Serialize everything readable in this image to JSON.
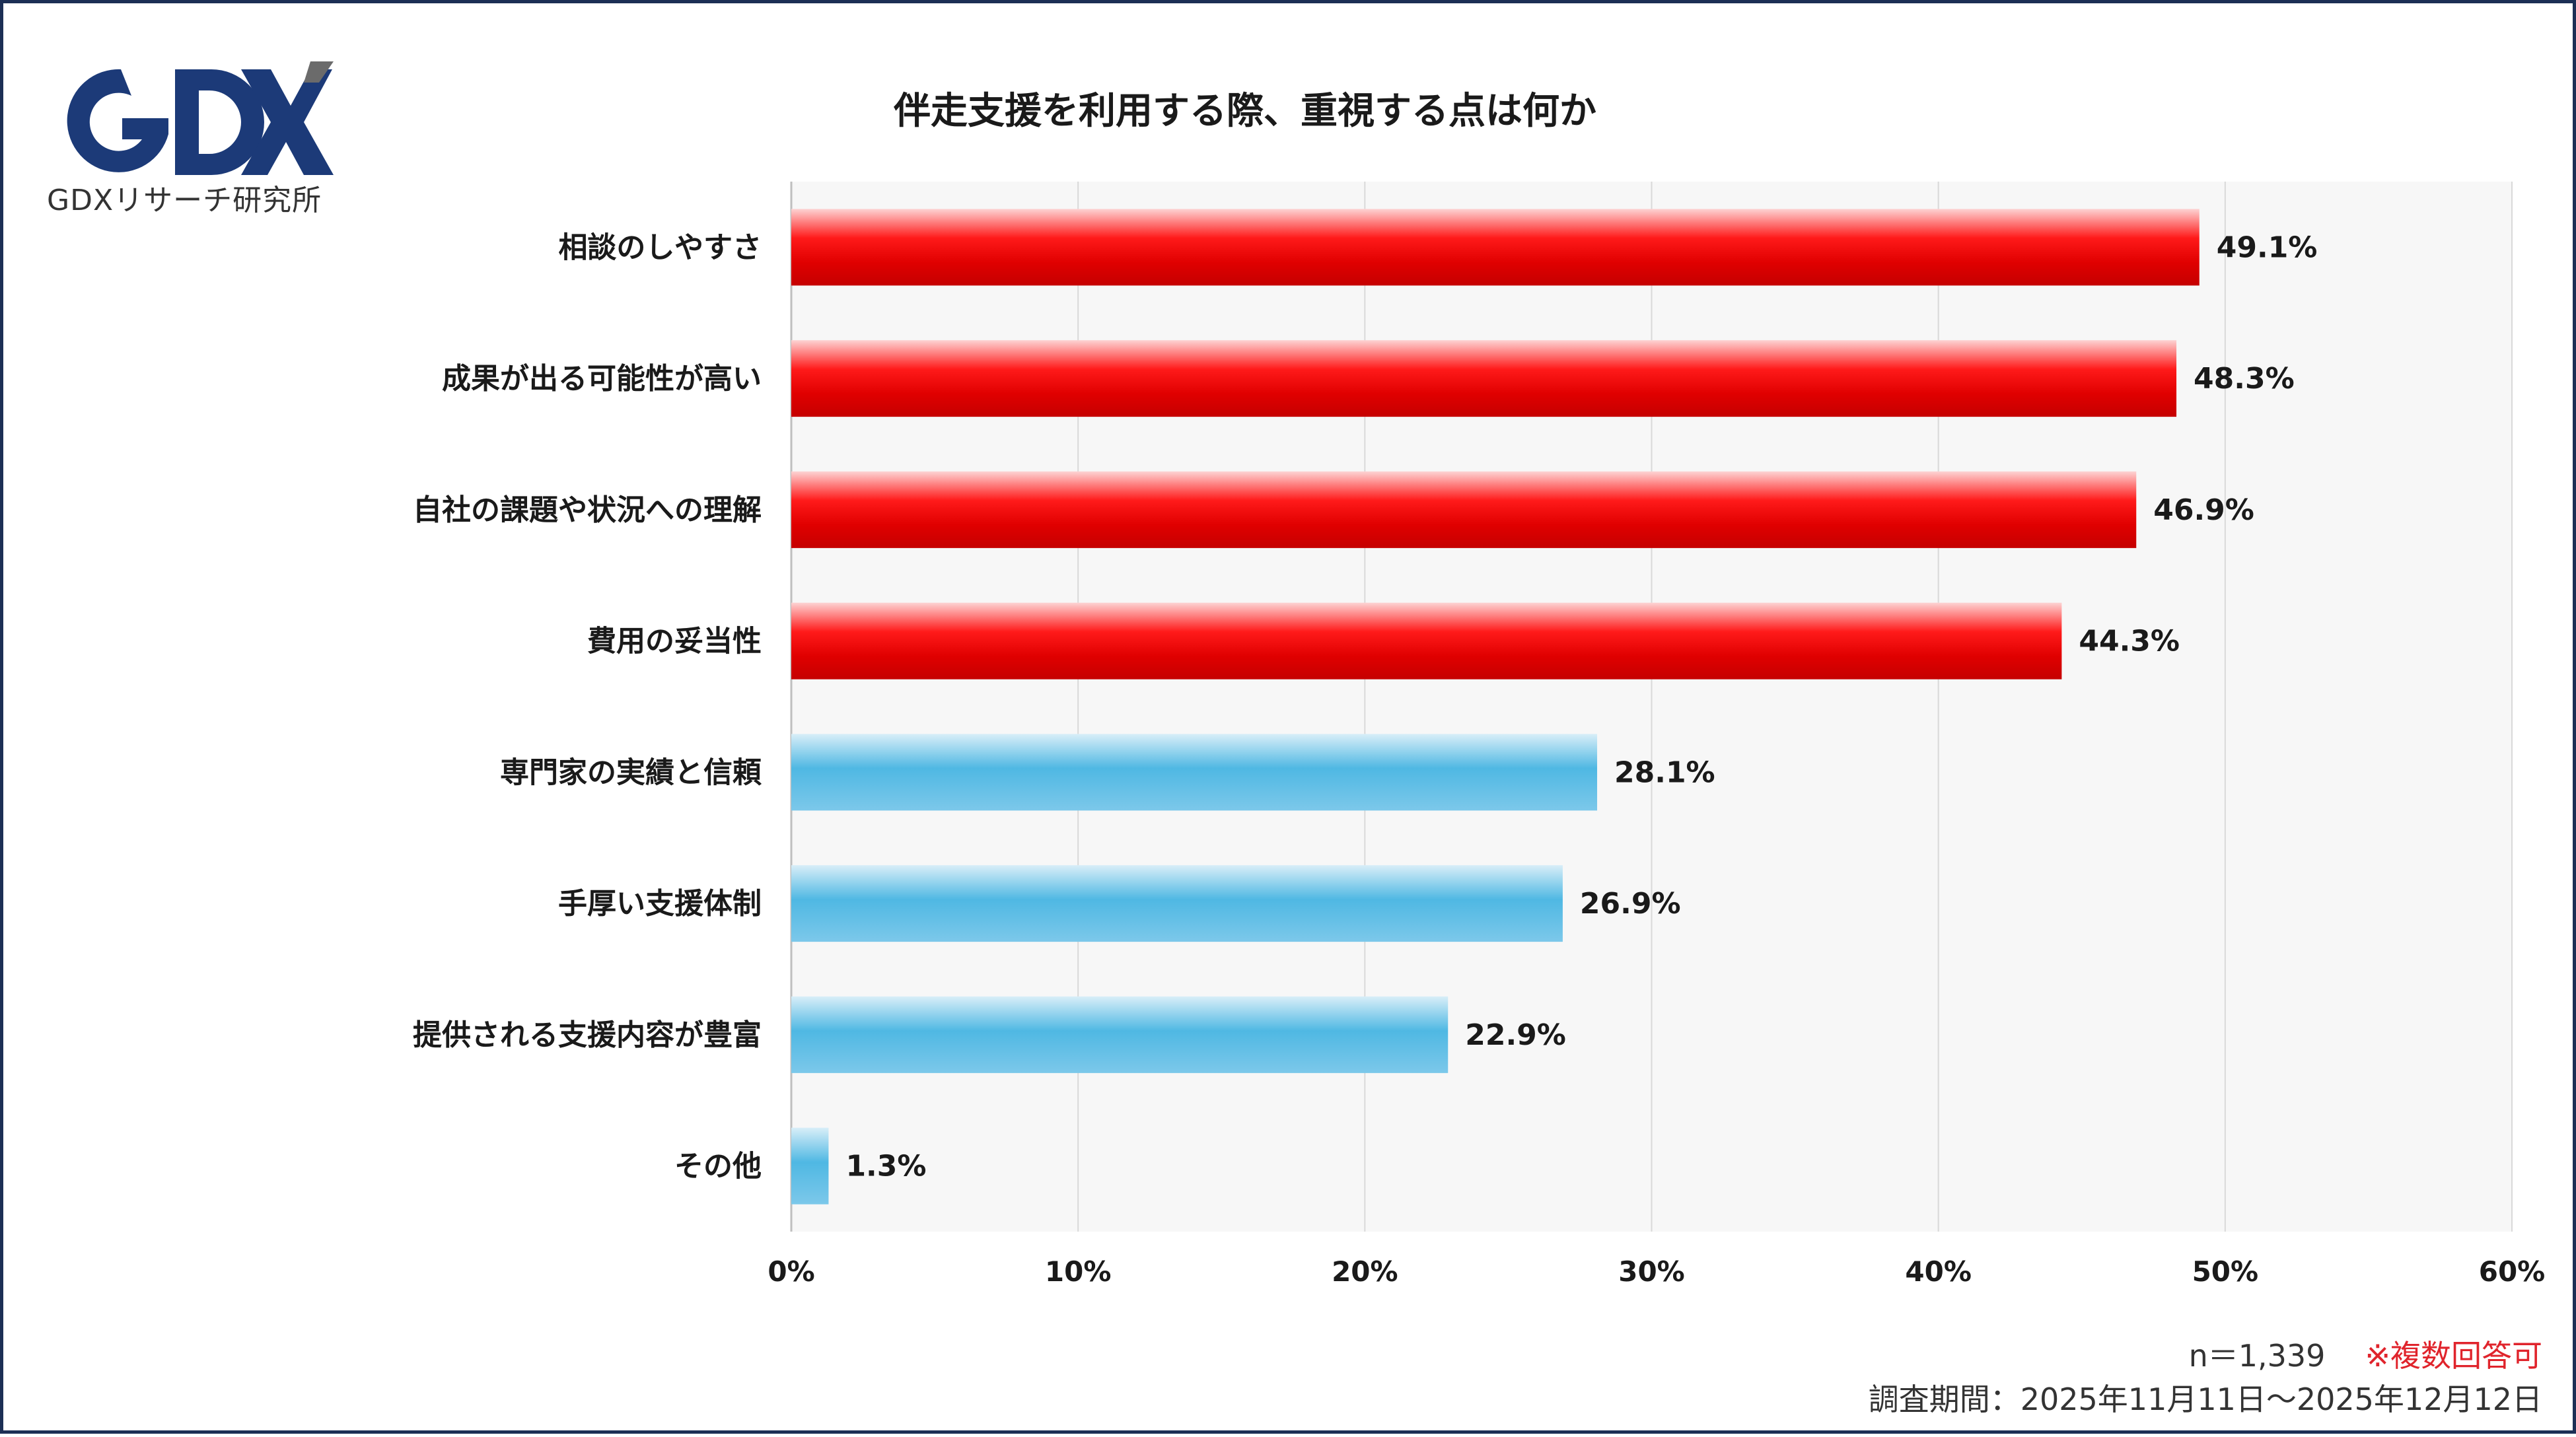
{
  "brand": {
    "logo_text": "GDX",
    "subtitle": "GDXリサーチ研究所",
    "colors": {
      "navy": "#1c3a78",
      "gray": "#6b6b6b"
    }
  },
  "chart_data": {
    "type": "bar",
    "orientation": "horizontal",
    "title": "伴走支援を利用する際、重視する点は何か",
    "categories": [
      "相談のしやすさ",
      "成果が出る可能性が高い",
      "自社の課題や状況への理解",
      "費用の妥当性",
      "専門家の実績と信頼",
      "手厚い支援体制",
      "提供される支援内容が豊富",
      "その他"
    ],
    "values": [
      49.1,
      48.3,
      46.9,
      44.3,
      28.1,
      26.9,
      22.9,
      1.3
    ],
    "value_labels": [
      "49.1%",
      "48.3%",
      "46.9%",
      "44.3%",
      "28.1%",
      "26.9%",
      "22.9%",
      "1.3%"
    ],
    "highlight": [
      true,
      true,
      true,
      true,
      false,
      false,
      false,
      false
    ],
    "xlim": [
      0,
      60
    ],
    "ticks": [
      0,
      10,
      20,
      30,
      40,
      50,
      60
    ],
    "tick_labels": [
      "0%",
      "10%",
      "20%",
      "30%",
      "40%",
      "50%",
      "60%"
    ],
    "grid": true,
    "colors": {
      "highlight": "#e60012",
      "normal": "#4db3e0",
      "plot_bg": "#f7f7f7",
      "grid": "#d9d9d9"
    }
  },
  "notes": {
    "sample": "n＝1,339",
    "multiple": "※複数回答可",
    "period": "調査期間：2025年11月11日～2025年12月12日"
  }
}
